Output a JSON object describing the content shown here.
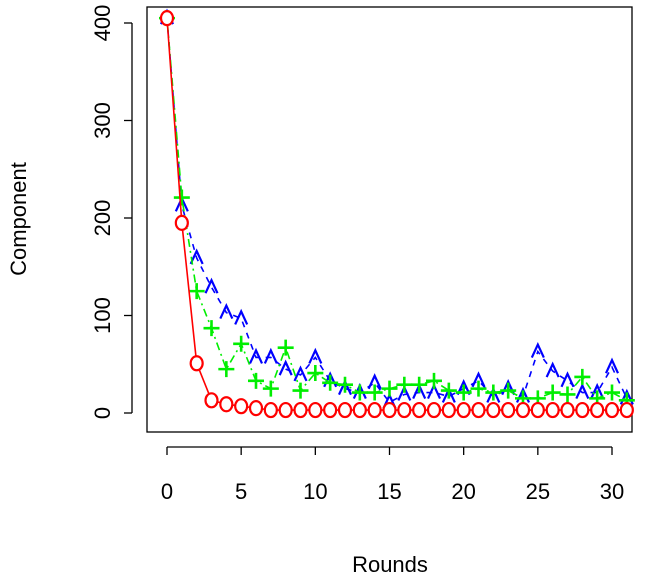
{
  "chart_data": {
    "type": "line",
    "xlabel": "Rounds",
    "ylabel": "Component",
    "xlim": [
      0,
      31
    ],
    "ylim": [
      0,
      405
    ],
    "x_ticks": [
      0,
      5,
      10,
      15,
      20,
      25,
      30
    ],
    "y_ticks": [
      0,
      100,
      200,
      300,
      400
    ],
    "x": [
      0,
      1,
      2,
      3,
      4,
      5,
      6,
      7,
      8,
      9,
      10,
      11,
      12,
      13,
      14,
      15,
      16,
      17,
      18,
      19,
      20,
      21,
      22,
      23,
      24,
      25,
      26,
      27,
      28,
      29,
      30,
      31
    ],
    "series": [
      {
        "color": "#0000ff",
        "marker": "^",
        "line": "dashed",
        "values": [
          405,
          213,
          159,
          129,
          103,
          97,
          57,
          57,
          45,
          39,
          57,
          33,
          25,
          21,
          31,
          11,
          19,
          21,
          21,
          17,
          25,
          33,
          17,
          25,
          17,
          63,
          43,
          33,
          21,
          21,
          47,
          15
        ]
      },
      {
        "color": "#00ee00",
        "marker": "+",
        "line": "dotdash",
        "values": [
          405,
          221,
          125,
          87,
          45,
          71,
          33,
          25,
          67,
          23,
          41,
          31,
          29,
          21,
          21,
          25,
          29,
          29,
          33,
          23,
          21,
          25,
          21,
          23,
          15,
          15,
          21,
          19,
          37,
          15,
          21,
          13
        ]
      },
      {
        "color": "#ff0000",
        "marker": "o",
        "line": "solid",
        "values": [
          405,
          195,
          51,
          13,
          9,
          7,
          5,
          3,
          3,
          3,
          3,
          3,
          3,
          3,
          3,
          3,
          3,
          3,
          3,
          3,
          3,
          3,
          3,
          3,
          3,
          3,
          3,
          3,
          3,
          3,
          3,
          3
        ]
      }
    ]
  }
}
